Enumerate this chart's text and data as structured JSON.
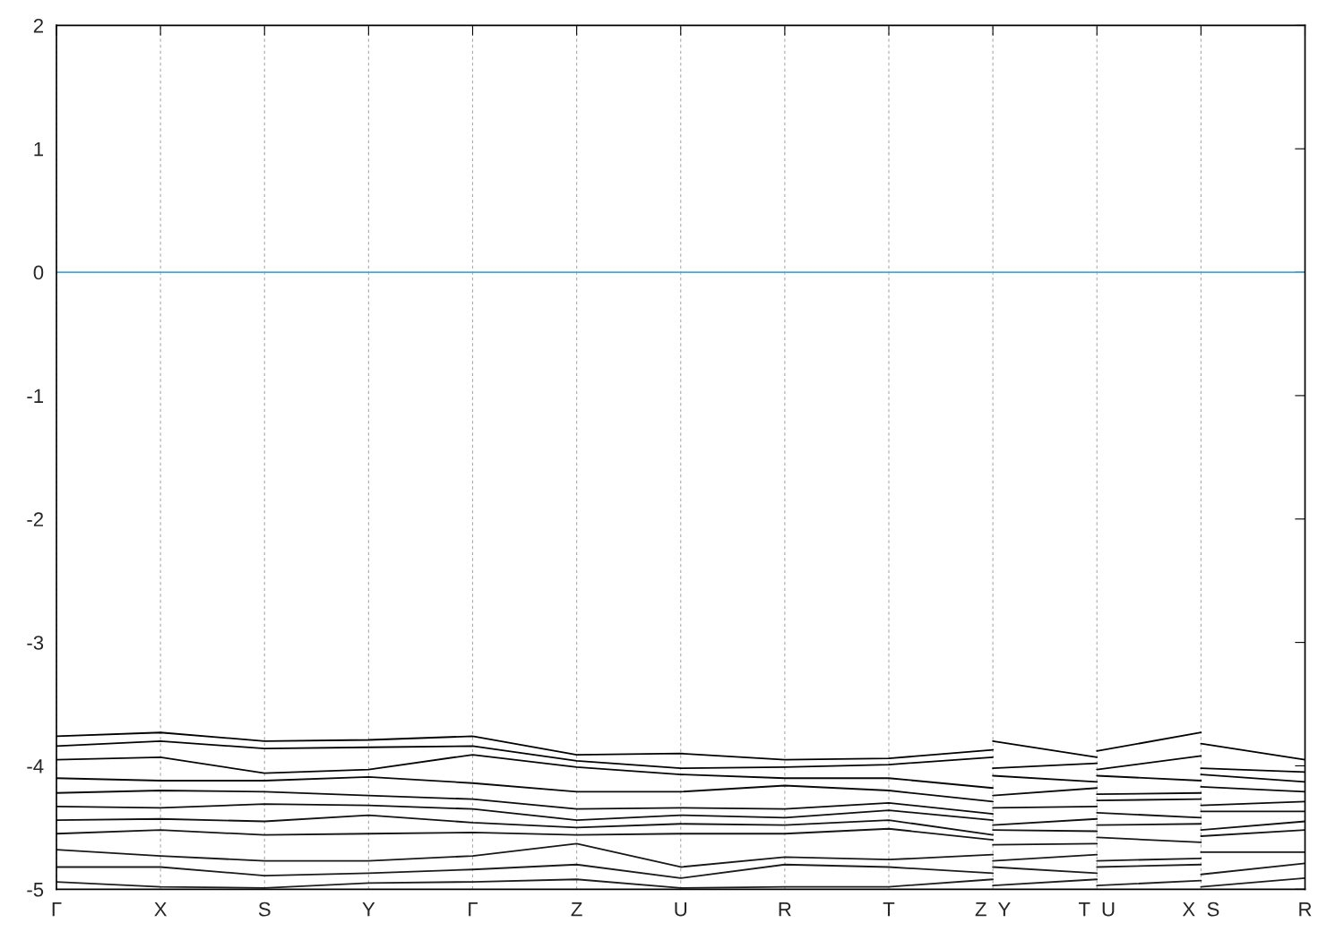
{
  "chart_data": {
    "type": "line",
    "categories": [
      "Γ",
      "X",
      "S",
      "Y",
      "Γ",
      "Z",
      "U",
      "R",
      "T",
      "Z  Y",
      "T  U",
      "X  S",
      "R"
    ],
    "ylim": [
      -5,
      2
    ],
    "yticks": [
      -5,
      -4,
      -3,
      -2,
      -1,
      0,
      1,
      2
    ],
    "grid": "x",
    "ref_lines": [
      {
        "axis": "y",
        "value": 0,
        "color": "#4aa8d8"
      }
    ],
    "series": [
      {
        "color": "#000000",
        "values": [
          -3.76,
          -3.73,
          -3.8,
          -3.79,
          -3.76,
          -3.91,
          -3.9,
          -3.95,
          -3.94,
          -3.87,
          null,
          -3.82,
          -3.95
        ]
      },
      {
        "color": "#010101",
        "values": [
          null,
          null,
          null,
          null,
          null,
          null,
          null,
          null,
          null,
          -3.8,
          -3.93,
          null,
          null
        ]
      },
      {
        "color": "#020202",
        "values": [
          null,
          null,
          null,
          null,
          null,
          null,
          null,
          null,
          null,
          null,
          -3.88,
          -3.73,
          null
        ]
      },
      {
        "color": "#030303",
        "values": [
          -3.84,
          -3.8,
          -3.86,
          -3.85,
          -3.84,
          -3.96,
          -4.02,
          -4.01,
          -3.99,
          -3.93,
          null,
          -4.02,
          -4.05
        ]
      },
      {
        "color": "#040404",
        "values": [
          null,
          null,
          null,
          null,
          null,
          null,
          null,
          null,
          null,
          -4.02,
          -3.98,
          null,
          null
        ]
      },
      {
        "color": "#050505",
        "values": [
          null,
          null,
          null,
          null,
          null,
          null,
          null,
          null,
          null,
          null,
          -4.03,
          -3.92,
          null
        ]
      },
      {
        "color": "#060606",
        "values": [
          -3.95,
          -3.93,
          -4.06,
          -4.03,
          -3.91,
          -4.01,
          -4.07,
          -4.1,
          -4.1,
          -4.18,
          null,
          -4.07,
          -4.13
        ]
      },
      {
        "color": "#070707",
        "values": [
          null,
          null,
          null,
          null,
          null,
          null,
          null,
          null,
          null,
          -4.08,
          -4.13,
          null,
          null
        ]
      },
      {
        "color": "#080808",
        "values": [
          null,
          null,
          null,
          null,
          null,
          null,
          null,
          null,
          null,
          null,
          -4.08,
          -4.12,
          null
        ]
      },
      {
        "color": "#090909",
        "values": [
          -4.1,
          -4.12,
          -4.12,
          -4.09,
          -4.14,
          -4.21,
          -4.21,
          -4.16,
          -4.2,
          -4.29,
          null,
          -4.17,
          -4.21
        ]
      },
      {
        "color": "#0a0a0a",
        "values": [
          null,
          null,
          null,
          null,
          null,
          null,
          null,
          null,
          null,
          -4.24,
          -4.18,
          null,
          null
        ]
      },
      {
        "color": "#0b0b0b",
        "values": [
          null,
          null,
          null,
          null,
          null,
          null,
          null,
          null,
          null,
          null,
          -4.23,
          -4.22,
          null
        ]
      },
      {
        "color": "#0c0c0c",
        "values": [
          -4.22,
          -4.2,
          -4.21,
          -4.24,
          -4.27,
          -4.35,
          -4.34,
          -4.35,
          -4.3,
          -4.39,
          null,
          -4.32,
          -4.29
        ]
      },
      {
        "color": "#0d0d0d",
        "values": [
          null,
          null,
          null,
          null,
          null,
          null,
          null,
          null,
          null,
          -4.34,
          -4.33,
          null,
          null
        ]
      },
      {
        "color": "#0e0e0e",
        "values": [
          null,
          null,
          null,
          null,
          null,
          null,
          null,
          null,
          null,
          null,
          -4.28,
          -4.27,
          null
        ]
      },
      {
        "color": "#0f0f0f",
        "values": [
          -4.33,
          -4.34,
          -4.31,
          -4.32,
          -4.35,
          -4.44,
          -4.4,
          -4.42,
          -4.36,
          -4.44,
          null,
          -4.37,
          -4.37
        ]
      },
      {
        "color": "#101010",
        "values": [
          null,
          null,
          null,
          null,
          null,
          null,
          null,
          null,
          null,
          -4.48,
          -4.43,
          null,
          null
        ]
      },
      {
        "color": "#111111",
        "values": [
          null,
          null,
          null,
          null,
          null,
          null,
          null,
          null,
          null,
          null,
          -4.38,
          -4.42,
          null
        ]
      },
      {
        "color": "#121212",
        "values": [
          -4.44,
          -4.43,
          -4.45,
          -4.4,
          -4.46,
          -4.5,
          -4.47,
          -4.48,
          -4.44,
          -4.56,
          null,
          -4.52,
          -4.45
        ]
      },
      {
        "color": "#131313",
        "values": [
          null,
          null,
          null,
          null,
          null,
          null,
          null,
          null,
          null,
          -4.52,
          -4.53,
          null,
          null
        ]
      },
      {
        "color": "#141414",
        "values": [
          null,
          null,
          null,
          null,
          null,
          null,
          null,
          null,
          null,
          null,
          -4.48,
          -4.47,
          null
        ]
      },
      {
        "color": "#151515",
        "values": [
          -4.55,
          -4.52,
          -4.56,
          -4.55,
          -4.54,
          -4.56,
          -4.55,
          -4.55,
          -4.51,
          -4.6,
          null,
          -4.57,
          -4.52
        ]
      },
      {
        "color": "#161616",
        "values": [
          null,
          null,
          null,
          null,
          null,
          null,
          null,
          null,
          null,
          -4.64,
          -4.63,
          null,
          null
        ]
      },
      {
        "color": "#171717",
        "values": [
          null,
          null,
          null,
          null,
          null,
          null,
          null,
          null,
          null,
          null,
          -4.58,
          -4.62,
          null
        ]
      },
      {
        "color": "#181818",
        "values": [
          -4.68,
          -4.73,
          -4.77,
          -4.77,
          -4.73,
          -4.63,
          -4.82,
          -4.74,
          -4.76,
          -4.72,
          null,
          -4.7,
          -4.7
        ]
      },
      {
        "color": "#191919",
        "values": [
          null,
          null,
          null,
          null,
          null,
          null,
          null,
          null,
          null,
          -4.77,
          -4.72,
          null,
          null
        ]
      },
      {
        "color": "#1a1a1a",
        "values": [
          null,
          null,
          null,
          null,
          null,
          null,
          null,
          null,
          null,
          null,
          -4.77,
          -4.75,
          null
        ]
      },
      {
        "color": "#1b1b1b",
        "values": [
          -4.82,
          -4.82,
          -4.89,
          -4.87,
          -4.84,
          -4.8,
          -4.91,
          -4.8,
          -4.82,
          -4.87,
          null,
          -4.88,
          -4.79
        ]
      },
      {
        "color": "#1c1c1c",
        "values": [
          null,
          null,
          null,
          null,
          null,
          null,
          null,
          null,
          null,
          -4.82,
          -4.87,
          null,
          null
        ]
      },
      {
        "color": "#1d1d1d",
        "values": [
          null,
          null,
          null,
          null,
          null,
          null,
          null,
          null,
          null,
          null,
          -4.82,
          -4.8,
          null
        ]
      },
      {
        "color": "#1e1e1e",
        "values": [
          -4.94,
          -4.98,
          -4.99,
          -4.95,
          -4.94,
          -4.92,
          -4.99,
          -4.98,
          -4.98,
          -4.92,
          null,
          -4.98,
          -4.91
        ]
      },
      {
        "color": "#1f1f1f",
        "values": [
          null,
          null,
          null,
          null,
          null,
          null,
          null,
          null,
          null,
          -4.97,
          -4.92,
          null,
          null
        ]
      },
      {
        "color": "#202020",
        "values": [
          null,
          null,
          null,
          null,
          null,
          null,
          null,
          null,
          null,
          null,
          -4.97,
          -4.93,
          null
        ]
      }
    ]
  }
}
